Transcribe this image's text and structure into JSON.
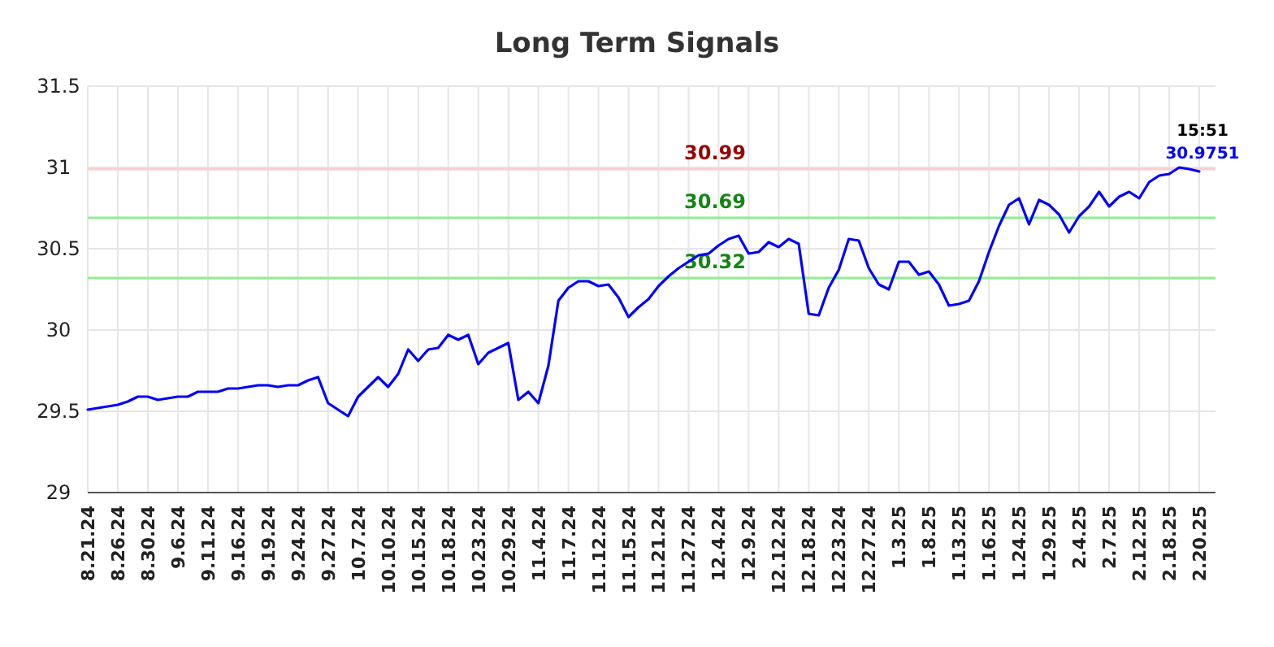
{
  "chart_data": {
    "type": "line",
    "title": "Long Term Signals",
    "categories": [
      "8.21.24",
      null,
      null,
      "8.26.24",
      null,
      null,
      "8.30.24",
      null,
      null,
      "9.6.24",
      null,
      null,
      "9.11.24",
      null,
      null,
      "9.16.24",
      null,
      null,
      "9.19.24",
      null,
      null,
      "9.24.24",
      null,
      null,
      "9.27.24",
      null,
      null,
      "10.7.24",
      null,
      null,
      "10.10.24",
      null,
      null,
      "10.15.24",
      null,
      null,
      "10.18.24",
      null,
      null,
      "10.23.24",
      null,
      null,
      "10.29.24",
      null,
      null,
      "11.4.24",
      null,
      null,
      "11.7.24",
      null,
      null,
      "11.12.24",
      null,
      null,
      "11.15.24",
      null,
      null,
      "11.21.24",
      null,
      null,
      "11.27.24",
      null,
      null,
      "12.4.24",
      null,
      null,
      "12.9.24",
      null,
      null,
      "12.12.24",
      null,
      null,
      "12.18.24",
      null,
      null,
      "12.23.24",
      null,
      null,
      "12.27.24",
      null,
      null,
      "1.3.25",
      null,
      null,
      "1.8.25",
      null,
      null,
      "1.13.25",
      null,
      null,
      "1.16.25",
      null,
      null,
      "1.24.25",
      null,
      null,
      "1.29.25",
      null,
      null,
      "2.4.25",
      null,
      null,
      "2.7.25",
      null,
      null,
      "2.12.25",
      null,
      null,
      "2.18.25",
      null,
      null,
      "2.20.25"
    ],
    "series": [
      {
        "color": "#0000ff",
        "values": [
          29.51,
          29.52,
          29.53,
          29.54,
          29.56,
          29.59,
          29.59,
          29.57,
          29.58,
          29.59,
          29.59,
          29.62,
          29.62,
          29.62,
          29.64,
          29.64,
          29.65,
          29.66,
          29.66,
          29.65,
          29.66,
          29.66,
          29.69,
          29.71,
          29.55,
          29.51,
          29.47,
          29.59,
          29.65,
          29.71,
          29.65,
          29.73,
          29.88,
          29.81,
          29.88,
          29.89,
          29.97,
          29.94,
          29.97,
          29.79,
          29.86,
          29.89,
          29.92,
          29.57,
          29.62,
          29.55,
          29.78,
          30.18,
          30.26,
          30.3,
          30.3,
          30.27,
          30.28,
          30.2,
          30.08,
          30.14,
          30.19,
          30.27,
          30.33,
          30.38,
          30.42,
          30.46,
          30.47,
          30.52,
          30.56,
          30.58,
          30.47,
          30.48,
          30.54,
          30.51,
          30.56,
          30.53,
          30.1,
          30.09,
          30.26,
          30.37,
          30.56,
          30.55,
          30.38,
          30.28,
          30.25,
          30.42,
          30.42,
          30.34,
          30.36,
          30.28,
          30.15,
          30.16,
          30.18,
          30.3,
          30.48,
          30.64,
          30.77,
          30.81,
          30.65,
          30.8,
          30.77,
          30.71,
          30.6,
          30.7,
          30.76,
          30.85,
          30.76,
          30.82,
          30.85,
          30.81,
          30.91,
          30.95,
          30.96,
          31.0,
          30.99,
          30.9751
        ]
      }
    ],
    "ylim": [
      29,
      31.5
    ],
    "yticks": [
      29,
      29.5,
      30,
      30.5,
      31,
      31.5
    ],
    "grid": true,
    "line_style": "solid",
    "ref_lines": [
      {
        "axis": "y",
        "value": 30.99,
        "label": "30.99",
        "color": "#ffcccc"
      },
      {
        "axis": "y",
        "value": 30.69,
        "label": "30.69",
        "color": "#90ee90"
      },
      {
        "axis": "y",
        "value": 30.32,
        "label": "30.32",
        "color": "#90ee90"
      }
    ],
    "annotations": [
      {
        "text": "15:51",
        "x": "2.20.25",
        "y": 30.9751
      },
      {
        "text": "30.9751",
        "x": "2.20.25",
        "y": 30.9751
      }
    ]
  }
}
